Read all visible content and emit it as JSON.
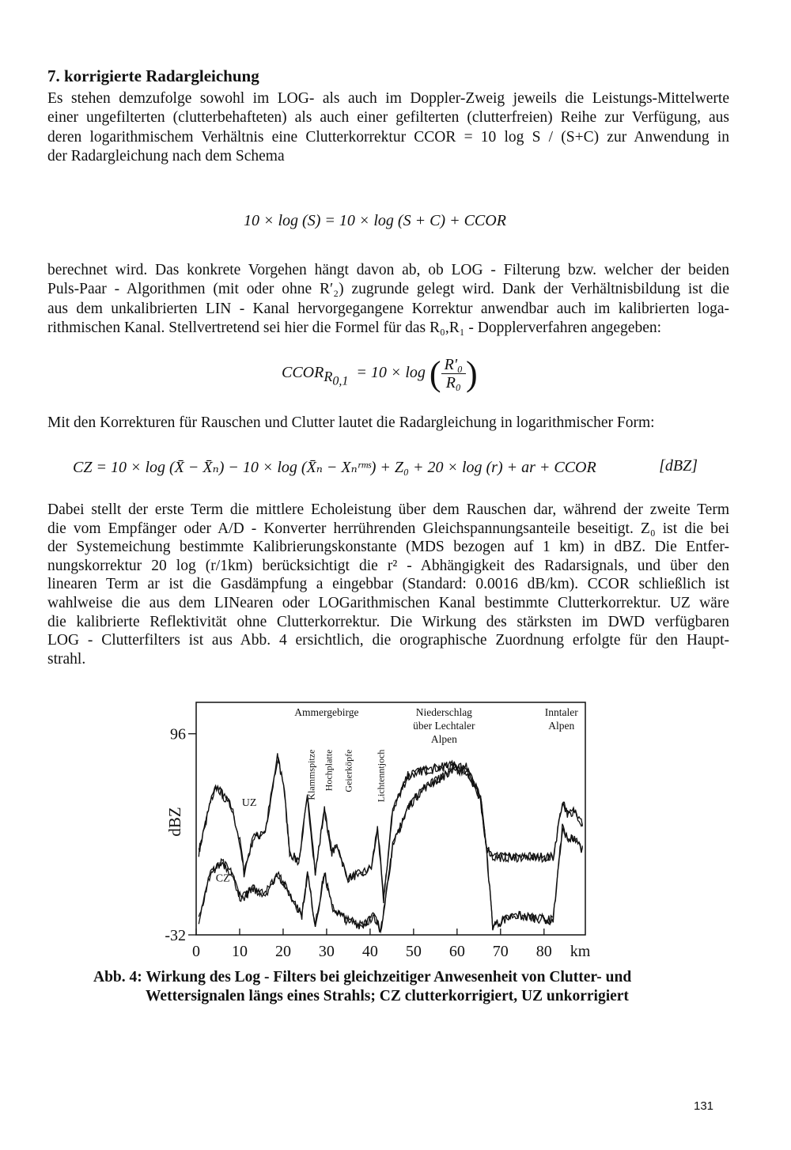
{
  "heading": "7. korrigierte Radargleichung",
  "para1": [
    "Es stehen demzufolge sowohl im LOG- als auch im Doppler-Zweig jeweils die Leistungs-Mittelwerte",
    "einer ungefilterten (clutterbehafteten) als auch einer gefilterten (clutterfreien) Reihe zur Verfügung, aus",
    "deren logarithmischem Verhältnis eine Clutterkorrektur CCOR = 10 log S / (S+C) zur Anwendung in",
    "der Radargleichung nach dem Schema"
  ],
  "eq1": "10 × log (S)  =  10 × log (S + C)  + CCOR",
  "para2": [
    "berechnet wird. Das konkrete Vorgehen hängt davon ab, ob LOG - Filterung  bzw. welcher der beiden",
    "Puls-Paar - Algorithmen (mit oder ohne R′₂) zugrunde gelegt wird. Dank der Verhältnisbildung ist die",
    "aus dem unkalibrierten LIN - Kanal hervorgegangene Korrektur anwendbar auch im kalibrierten loga-",
    "rithmischen Kanal. Stellvertretend sei hier die Formel für das R₀,R₁ - Dopplerverfahren angegeben:"
  ],
  "eq2": {
    "lhs": "CCOR",
    "lhs_sub": "R",
    "lhs_subsub": "0,1",
    "mid": "=  10 × log",
    "num": "R'₀",
    "den": "R₀"
  },
  "para3": "Mit den Korrekturen für Rauschen und Clutter lautet die Radargleichung in logarithmischer Form:",
  "eq3": {
    "text": "CZ = 10 × log (X̄ − X̄ₙ)  −  10 × log (X̄ₙ − Xₙʳᵐˢ)  + Z₀ + 20 × log (r)  + ar + CCOR",
    "unit": "[dBZ]"
  },
  "para4": [
    "Dabei stellt der erste Term die mittlere Echoleistung über dem Rauschen dar, während der zweite Term",
    "die vom Empfänger oder A/D - Konverter herrührenden Gleichspannungsanteile beseitigt. Z₀ ist die bei",
    "der Systemeichung bestimmte Kalibrierungskonstante (MDS bezogen auf 1 km) in dBZ. Die Entfer-",
    "nungskorrektur 20 log (r/1km) berücksichtigt die r² - Abhängigkeit des Radarsignals, und über den",
    "linearen Term ar ist die Gasdämpfung a eingebbar (Standard: 0.0016 dB/km). CCOR schließlich ist",
    "wahlweise die aus dem LINearen oder LOGarithmischen Kanal bestimmte Clutterkorrektur. UZ wäre",
    "die kalibrierte Reflektivität ohne Clutterkorrektur. Die Wirkung des stärksten im DWD verfügbaren",
    "LOG - Clutterfilters ist aus Abb. 4 ersichtlich, die orographische Zuordnung erfolgte für den Haupt-",
    "strahl."
  ],
  "chart_data": {
    "type": "line",
    "xlabel": "km",
    "ylabel": "dBZ",
    "xlim": [
      0,
      89.5
    ],
    "ylim": [
      -32,
      116
    ],
    "x_ticks": [
      0,
      10,
      20,
      30,
      40,
      50,
      60,
      70,
      80
    ],
    "y_ticks": [
      96,
      -32
    ],
    "grid": false,
    "annotations": [
      {
        "text": "Ammergebirge",
        "x": 30
      },
      {
        "text": "Niederschlag",
        "x": 57
      },
      {
        "text": "über Lechtaler",
        "x": 57
      },
      {
        "text": "Alpen",
        "x": 57
      },
      {
        "text": "Inntaler",
        "x": 84
      },
      {
        "text": "Alpen",
        "x": 84
      },
      {
        "text": "Klammspitze",
        "x": 26.5,
        "vertical": true
      },
      {
        "text": "Hochplatte",
        "x": 30.5,
        "vertical": true
      },
      {
        "text": "Geierköpfe",
        "x": 35,
        "vertical": true
      },
      {
        "text": "Lichtenntjoch",
        "x": 42.5,
        "vertical": true
      }
    ],
    "series": [
      {
        "name": "UZ",
        "label_at": [
          10.5,
          50
        ],
        "points": [
          [
            0.6,
            20.7
          ],
          [
            3.3,
            52.5
          ],
          [
            4.7,
            62.5
          ],
          [
            6.8,
            54.2
          ],
          [
            8.2,
            49.2
          ],
          [
            10.3,
            24.1
          ],
          [
            11.0,
            7.3
          ],
          [
            13.1,
            29.1
          ],
          [
            15.9,
            34.1
          ],
          [
            18.7,
            81.0
          ],
          [
            20.1,
            64.3
          ],
          [
            21.5,
            20.7
          ],
          [
            23.6,
            14.0
          ],
          [
            25.6,
            55.8
          ],
          [
            27.4,
            7.3
          ],
          [
            29.5,
            47.5
          ],
          [
            31.2,
            20.7
          ],
          [
            32.6,
            24.1
          ],
          [
            34.7,
            4.0
          ],
          [
            38.2,
            7.3
          ],
          [
            40.3,
            10.7
          ],
          [
            41.7,
            37.4
          ],
          [
            43.1,
            -9.4
          ],
          [
            45.2,
            47.5
          ],
          [
            48.7,
            69.2
          ],
          [
            52.1,
            72.6
          ],
          [
            59.1,
            75.9
          ],
          [
            62.6,
            74.3
          ],
          [
            65.4,
            54.2
          ],
          [
            66.8,
            24.1
          ],
          [
            68.2,
            17.4
          ],
          [
            73.0,
            17.4
          ],
          [
            82.1,
            17.4
          ],
          [
            84.2,
            52.5
          ],
          [
            85.6,
            44.1
          ],
          [
            87.0,
            47.5
          ],
          [
            89.1,
            37.4
          ]
        ]
      },
      {
        "name": "CZ",
        "label_at": [
          4.5,
          2
        ],
        "points": [
          [
            0.6,
            -22.8
          ],
          [
            3.3,
            7.3
          ],
          [
            6.0,
            14.0
          ],
          [
            8.2,
            7.3
          ],
          [
            10.3,
            -9.4
          ],
          [
            13.1,
            -2.7
          ],
          [
            15.9,
            -6.1
          ],
          [
            18.7,
            7.3
          ],
          [
            21.5,
            -6.1
          ],
          [
            24.3,
            -19.5
          ],
          [
            25.6,
            7.3
          ],
          [
            27.4,
            -26.1
          ],
          [
            29.5,
            7.3
          ],
          [
            31.2,
            -14.5
          ],
          [
            34.7,
            -22.8
          ],
          [
            38.2,
            -26.1
          ],
          [
            40.9,
            -19.5
          ],
          [
            42.4,
            -29.5
          ],
          [
            45.2,
            24.1
          ],
          [
            48.7,
            49.2
          ],
          [
            52.1,
            60.9
          ],
          [
            57.0,
            69.2
          ],
          [
            59.1,
            74.3
          ],
          [
            62.6,
            70.9
          ],
          [
            65.4,
            54.2
          ],
          [
            66.8,
            20.7
          ],
          [
            68.2,
            -26.1
          ],
          [
            73.0,
            -19.5
          ],
          [
            82.1,
            -22.8
          ],
          [
            84.2,
            35.8
          ],
          [
            85.6,
            27.4
          ],
          [
            87.0,
            30.8
          ],
          [
            89.1,
            20.7
          ]
        ]
      }
    ]
  },
  "caption": {
    "label": "Abb. 4:",
    "line1": "Wirkung des Log - Filters bei gleichzeitiger Anwesenheit von Clutter- und",
    "line2": "Wettersignalen längs eines Strahls; CZ clutterkorrigiert, UZ unkorrigiert"
  },
  "page_number": "131"
}
